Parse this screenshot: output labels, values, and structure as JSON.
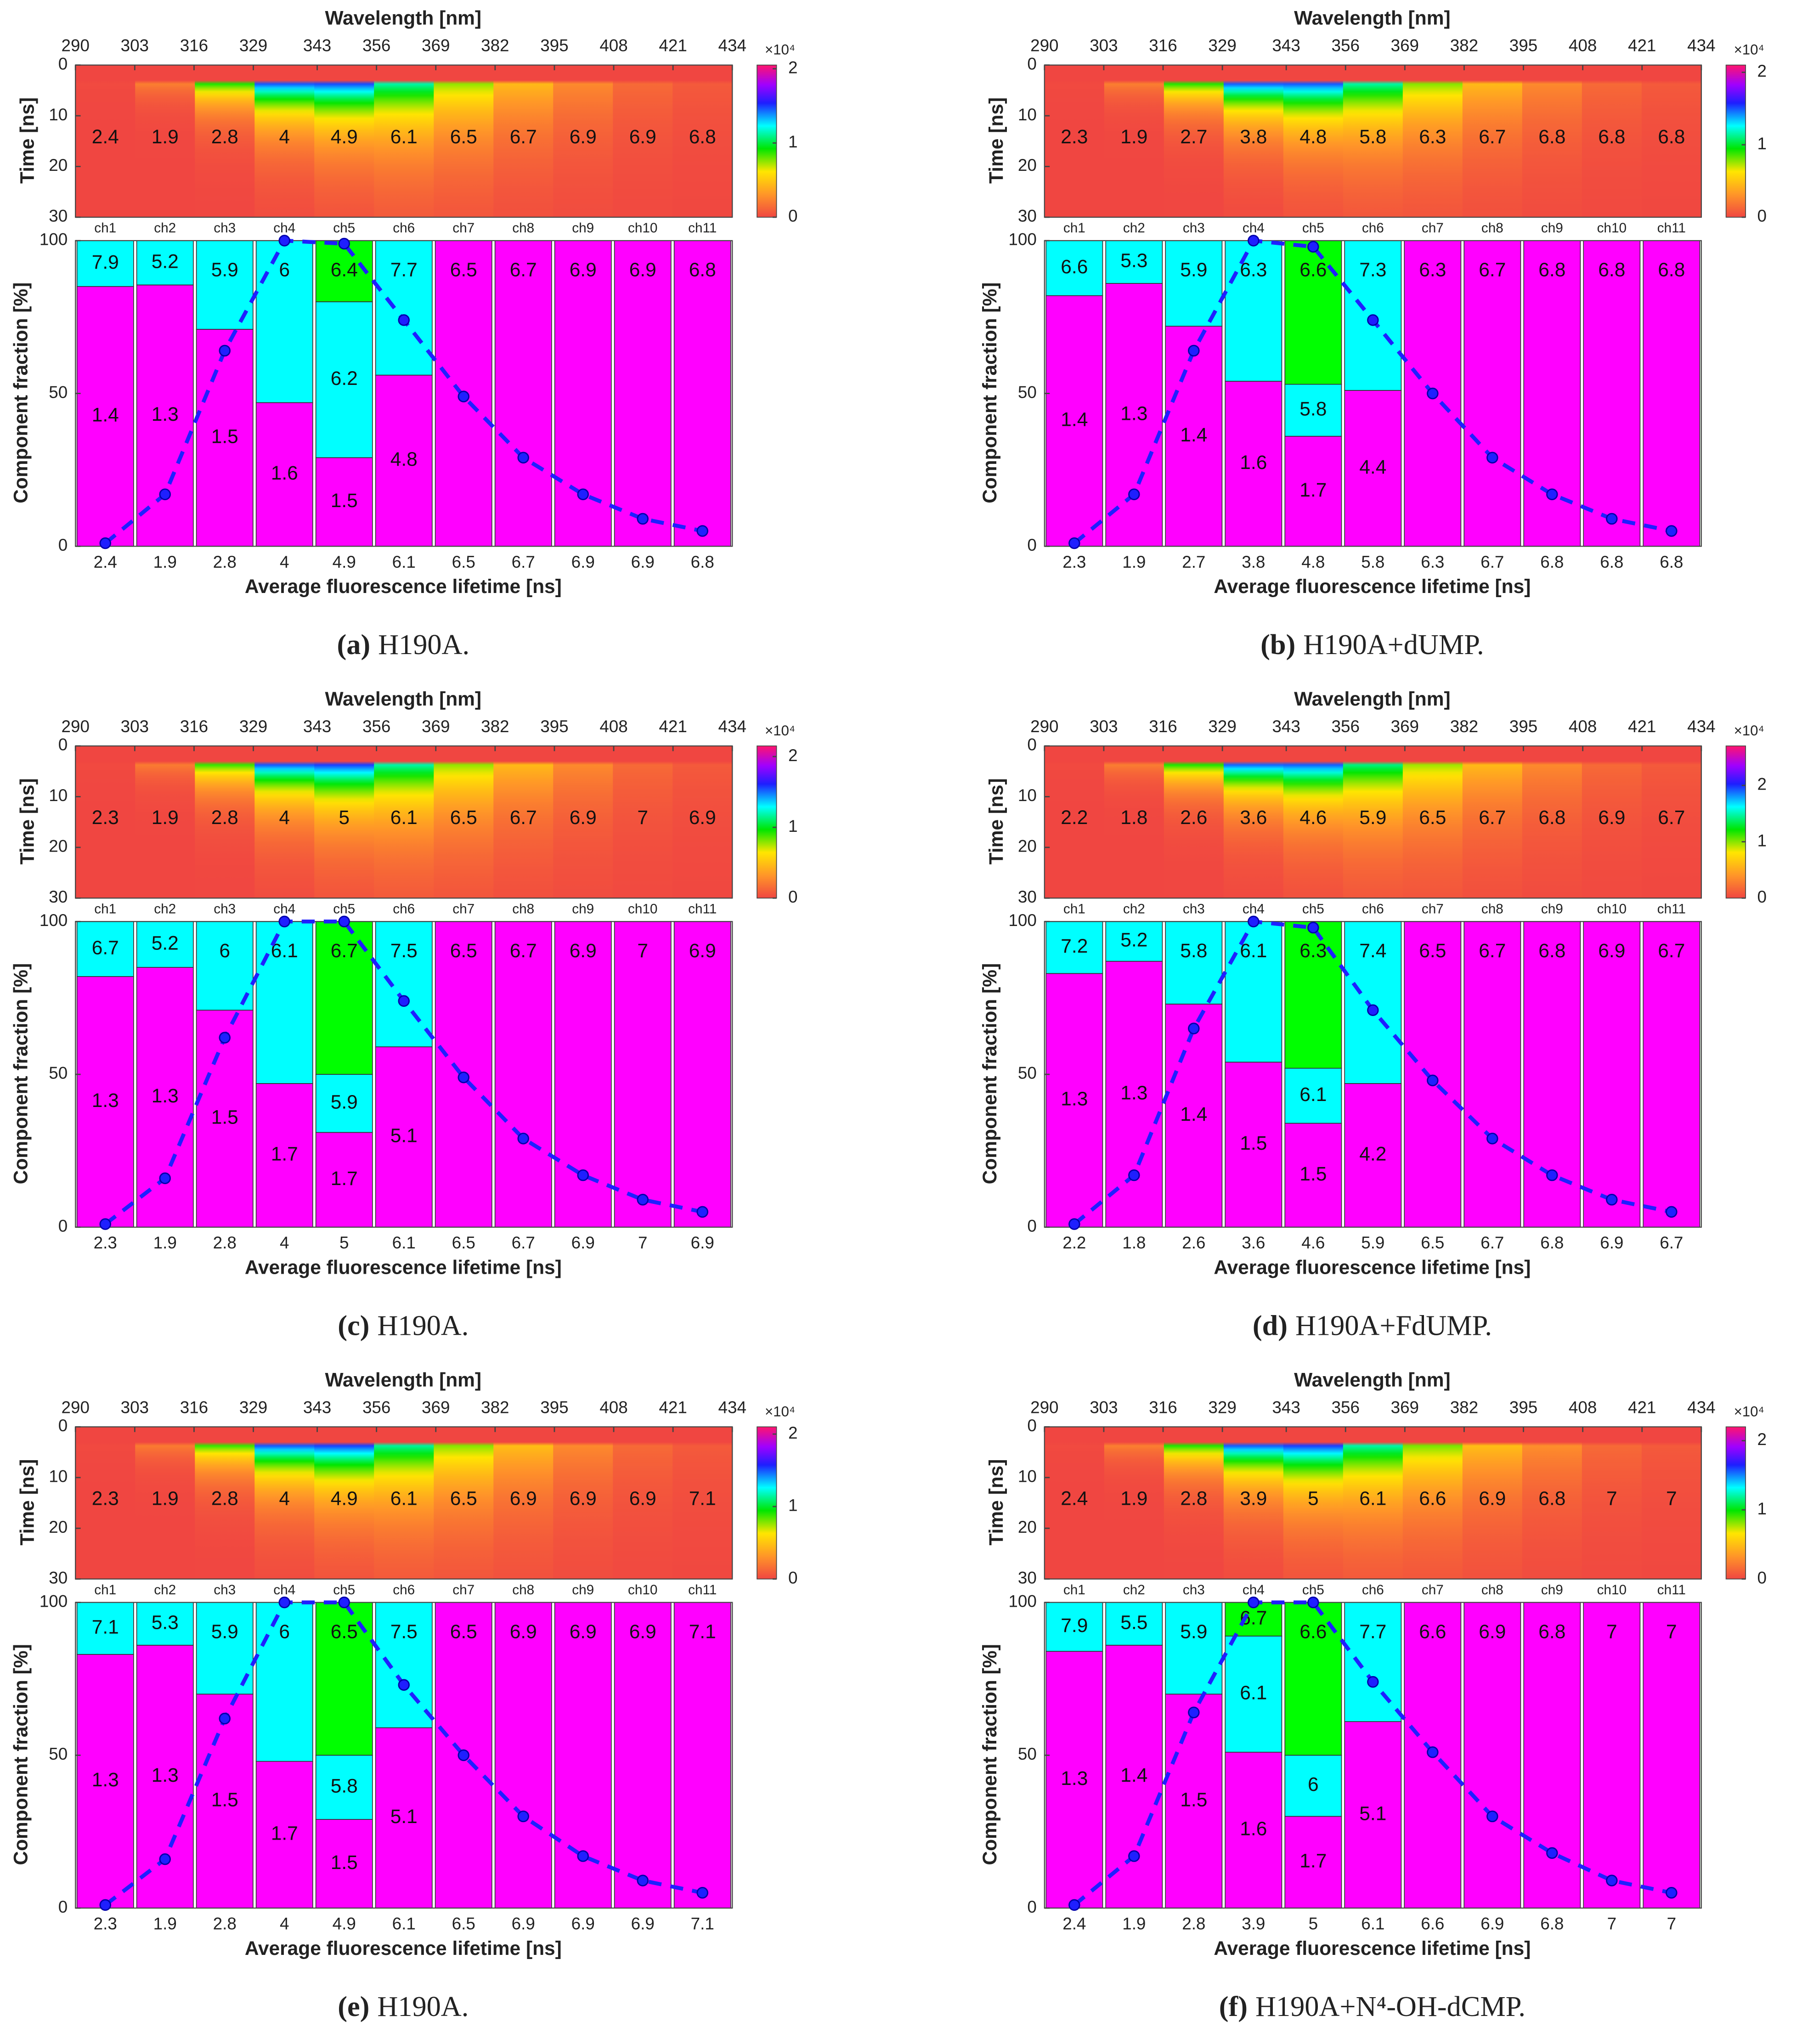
{
  "chart_data": [
    {
      "type": "bar",
      "caption_label": "(a)",
      "caption": "H190A.",
      "heatmap": {
        "xlabel": "Wavelength [nm]",
        "xlim": [
          290,
          434
        ],
        "xticks": [
          290,
          303,
          316,
          329,
          343,
          356,
          369,
          382,
          395,
          408,
          421,
          434
        ],
        "ylabel": "Time [ns]",
        "ylim": [
          0,
          30
        ],
        "yticks": [
          0,
          10,
          20,
          30
        ],
        "colorbar_lim": [
          0,
          2.05
        ],
        "colorbar_ticks": [
          0,
          1,
          2
        ],
        "colorbar_exponent": "×10⁴"
      },
      "categories": [
        "ch1",
        "ch2",
        "ch3",
        "ch4",
        "ch5",
        "ch6",
        "ch7",
        "ch8",
        "ch9",
        "ch10",
        "ch11"
      ],
      "average_lifetimes": [
        2.4,
        1.9,
        2.8,
        4,
        4.9,
        6.1,
        6.5,
        6.7,
        6.9,
        6.9,
        6.8
      ],
      "series": [
        {
          "color": "#ff00ff",
          "values": [
            85,
            85.5,
            71,
            47,
            29,
            56,
            100,
            100,
            100,
            100,
            100
          ],
          "lifetimes": [
            1.4,
            1.3,
            1.5,
            1.6,
            1.5,
            4.8,
            6.5,
            6.7,
            6.9,
            6.9,
            6.8
          ]
        },
        {
          "color": "#00ffff",
          "values": [
            15,
            14.5,
            29,
            53,
            51,
            44,
            0,
            0,
            0,
            0,
            0
          ],
          "lifetimes": [
            7.9,
            5.2,
            5.9,
            6,
            6.2,
            7.7,
            null,
            null,
            null,
            null,
            null
          ]
        },
        {
          "color": "#00ff00",
          "values": [
            0,
            0,
            0,
            0,
            20,
            0,
            0,
            0,
            0,
            0,
            0
          ],
          "lifetimes": [
            null,
            null,
            null,
            null,
            6.4,
            null,
            null,
            null,
            null,
            null,
            null
          ]
        }
      ],
      "line": {
        "color": "#1f1fff",
        "values": [
          1,
          17,
          64,
          100,
          99,
          74,
          49,
          29,
          17,
          9,
          5
        ]
      },
      "ylabel": "Component fraction [%]",
      "xlabel": "Average fluorescence lifetime [ns]",
      "ylim": [
        0,
        100
      ],
      "yticks": [
        0,
        50,
        100
      ]
    },
    {
      "type": "bar",
      "caption_label": "(b)",
      "caption": "H190A+dUMP.",
      "heatmap": {
        "xlabel": "Wavelength [nm]",
        "xlim": [
          290,
          434
        ],
        "xticks": [
          290,
          303,
          316,
          329,
          343,
          356,
          369,
          382,
          395,
          408,
          421,
          434
        ],
        "ylabel": "Time [ns]",
        "ylim": [
          0,
          30
        ],
        "yticks": [
          0,
          10,
          20,
          30
        ],
        "colorbar_lim": [
          0,
          2.1
        ],
        "colorbar_ticks": [
          0,
          1,
          2
        ],
        "colorbar_exponent": "×10⁴"
      },
      "categories": [
        "ch1",
        "ch2",
        "ch3",
        "ch4",
        "ch5",
        "ch6",
        "ch7",
        "ch8",
        "ch9",
        "ch10",
        "ch11"
      ],
      "average_lifetimes": [
        2.3,
        1.9,
        2.7,
        3.8,
        4.8,
        5.8,
        6.3,
        6.7,
        6.8,
        6.8,
        6.8
      ],
      "series": [
        {
          "color": "#ff00ff",
          "values": [
            82,
            86,
            72,
            54,
            36,
            51,
            100,
            100,
            100,
            100,
            100
          ],
          "lifetimes": [
            1.4,
            1.3,
            1.4,
            1.6,
            1.7,
            4.4,
            6.3,
            6.7,
            6.8,
            6.8,
            6.8
          ]
        },
        {
          "color": "#00ffff",
          "values": [
            18,
            14,
            28,
            46,
            17,
            49,
            0,
            0,
            0,
            0,
            0
          ],
          "lifetimes": [
            6.6,
            5.3,
            5.9,
            6.3,
            5.8,
            7.3,
            null,
            null,
            null,
            null,
            null
          ]
        },
        {
          "color": "#00ff00",
          "values": [
            0,
            0,
            0,
            0,
            47,
            0,
            0,
            0,
            0,
            0,
            0
          ],
          "lifetimes": [
            null,
            null,
            null,
            null,
            6.6,
            null,
            null,
            null,
            null,
            null,
            null
          ]
        }
      ],
      "line": {
        "color": "#1f1fff",
        "values": [
          1,
          17,
          64,
          100,
          98,
          74,
          50,
          29,
          17,
          9,
          5
        ]
      },
      "ylabel": "Component fraction [%]",
      "xlabel": "Average fluorescence lifetime [ns]",
      "ylim": [
        0,
        100
      ],
      "yticks": [
        0,
        50,
        100
      ]
    },
    {
      "type": "bar",
      "caption_label": "(c)",
      "caption": "H190A.",
      "heatmap": {
        "xlabel": "Wavelength [nm]",
        "xlim": [
          290,
          434
        ],
        "xticks": [
          290,
          303,
          316,
          329,
          343,
          356,
          369,
          382,
          395,
          408,
          421,
          434
        ],
        "ylabel": "Time [ns]",
        "ylim": [
          0,
          30
        ],
        "yticks": [
          0,
          10,
          20,
          30
        ],
        "colorbar_lim": [
          0,
          2.15
        ],
        "colorbar_ticks": [
          0,
          1,
          2
        ],
        "colorbar_exponent": "×10⁴"
      },
      "categories": [
        "ch1",
        "ch2",
        "ch3",
        "ch4",
        "ch5",
        "ch6",
        "ch7",
        "ch8",
        "ch9",
        "ch10",
        "ch11"
      ],
      "average_lifetimes": [
        2.3,
        1.9,
        2.8,
        4,
        5,
        6.1,
        6.5,
        6.7,
        6.9,
        7,
        6.9
      ],
      "series": [
        {
          "color": "#ff00ff",
          "values": [
            82,
            85,
            71,
            47,
            31,
            59,
            100,
            100,
            100,
            100,
            100
          ],
          "lifetimes": [
            1.3,
            1.3,
            1.5,
            1.7,
            1.7,
            5.1,
            6.5,
            6.7,
            6.9,
            7,
            6.9
          ]
        },
        {
          "color": "#00ffff",
          "values": [
            18,
            15,
            29,
            53,
            19,
            41,
            0,
            0,
            0,
            0,
            0
          ],
          "lifetimes": [
            6.7,
            5.2,
            6,
            6.1,
            5.9,
            7.5,
            null,
            null,
            null,
            null,
            null
          ]
        },
        {
          "color": "#00ff00",
          "values": [
            0,
            0,
            0,
            0,
            50,
            0,
            0,
            0,
            0,
            0,
            0
          ],
          "lifetimes": [
            null,
            null,
            null,
            null,
            6.7,
            null,
            null,
            null,
            null,
            null,
            null
          ]
        }
      ],
      "line": {
        "color": "#1f1fff",
        "values": [
          1,
          16,
          62,
          100,
          100,
          74,
          49,
          29,
          17,
          9,
          5
        ]
      },
      "ylabel": "Component fraction [%]",
      "xlabel": "Average fluorescence lifetime [ns]",
      "ylim": [
        0,
        100
      ],
      "yticks": [
        0,
        50,
        100
      ]
    },
    {
      "type": "bar",
      "caption_label": "(d)",
      "caption": "H190A+FdUMP.",
      "heatmap": {
        "xlabel": "Wavelength [nm]",
        "xlim": [
          290,
          434
        ],
        "xticks": [
          290,
          303,
          316,
          329,
          343,
          356,
          369,
          382,
          395,
          408,
          421,
          434
        ],
        "ylabel": "Time [ns]",
        "ylim": [
          0,
          30
        ],
        "yticks": [
          0,
          10,
          20,
          30
        ],
        "colorbar_lim": [
          0,
          2.7
        ],
        "colorbar_ticks": [
          0,
          1,
          2
        ],
        "colorbar_exponent": "×10⁴"
      },
      "categories": [
        "ch1",
        "ch2",
        "ch3",
        "ch4",
        "ch5",
        "ch6",
        "ch7",
        "ch8",
        "ch9",
        "ch10",
        "ch11"
      ],
      "average_lifetimes": [
        2.2,
        1.8,
        2.6,
        3.6,
        4.6,
        5.9,
        6.5,
        6.7,
        6.8,
        6.9,
        6.7
      ],
      "series": [
        {
          "color": "#ff00ff",
          "values": [
            83,
            87,
            73,
            54,
            34,
            47,
            100,
            100,
            100,
            100,
            100
          ],
          "lifetimes": [
            1.3,
            1.3,
            1.4,
            1.5,
            1.5,
            4.2,
            6.5,
            6.7,
            6.8,
            6.9,
            6.7
          ]
        },
        {
          "color": "#00ffff",
          "values": [
            17,
            13,
            27,
            46,
            18,
            53,
            0,
            0,
            0,
            0,
            0
          ],
          "lifetimes": [
            7.2,
            5.2,
            5.8,
            6.1,
            6.1,
            7.4,
            null,
            null,
            null,
            null,
            null
          ]
        },
        {
          "color": "#00ff00",
          "values": [
            0,
            0,
            0,
            0,
            48,
            0,
            0,
            0,
            0,
            0,
            0
          ],
          "lifetimes": [
            null,
            null,
            null,
            null,
            6.3,
            null,
            null,
            null,
            null,
            null,
            null
          ]
        }
      ],
      "line": {
        "color": "#1f1fff",
        "values": [
          1,
          17,
          65,
          100,
          98,
          71,
          48,
          29,
          17,
          9,
          5
        ]
      },
      "ylabel": "Component fraction [%]",
      "xlabel": "Average fluorescence lifetime [ns]",
      "ylim": [
        0,
        100
      ],
      "yticks": [
        0,
        50,
        100
      ]
    },
    {
      "type": "bar",
      "caption_label": "(e)",
      "caption": "H190A.",
      "heatmap": {
        "xlabel": "Wavelength [nm]",
        "xlim": [
          290,
          434
        ],
        "xticks": [
          290,
          303,
          316,
          329,
          343,
          356,
          369,
          382,
          395,
          408,
          421,
          434
        ],
        "ylabel": "Time [ns]",
        "ylim": [
          0,
          30
        ],
        "yticks": [
          0,
          10,
          20,
          30
        ],
        "colorbar_lim": [
          0,
          2.1
        ],
        "colorbar_ticks": [
          0,
          1,
          2
        ],
        "colorbar_exponent": "×10⁴"
      },
      "categories": [
        "ch1",
        "ch2",
        "ch3",
        "ch4",
        "ch5",
        "ch6",
        "ch7",
        "ch8",
        "ch9",
        "ch10",
        "ch11"
      ],
      "average_lifetimes": [
        2.3,
        1.9,
        2.8,
        4,
        4.9,
        6.1,
        6.5,
        6.9,
        6.9,
        6.9,
        7.1
      ],
      "series": [
        {
          "color": "#ff00ff",
          "values": [
            83,
            86,
            70,
            48,
            29,
            59,
            100,
            100,
            100,
            100,
            100
          ],
          "lifetimes": [
            1.3,
            1.3,
            1.5,
            1.7,
            1.5,
            5.1,
            6.5,
            6.9,
            6.9,
            6.9,
            7.1
          ]
        },
        {
          "color": "#00ffff",
          "values": [
            17,
            14,
            30,
            52,
            21,
            41,
            0,
            0,
            0,
            0,
            0
          ],
          "lifetimes": [
            7.1,
            5.3,
            5.9,
            6,
            5.8,
            7.5,
            null,
            null,
            null,
            null,
            null
          ]
        },
        {
          "color": "#00ff00",
          "values": [
            0,
            0,
            0,
            0,
            50,
            0,
            0,
            0,
            0,
            0,
            0
          ],
          "lifetimes": [
            null,
            null,
            null,
            null,
            6.5,
            null,
            null,
            null,
            null,
            null,
            null
          ]
        }
      ],
      "line": {
        "color": "#1f1fff",
        "values": [
          1,
          16,
          62,
          100,
          100,
          73,
          50,
          30,
          17,
          9,
          5
        ]
      },
      "ylabel": "Component fraction [%]",
      "xlabel": "Average fluorescence lifetime [ns]",
      "ylim": [
        0,
        100
      ],
      "yticks": [
        0,
        50,
        100
      ]
    },
    {
      "type": "bar",
      "caption_label": "(f)",
      "caption": "H190A+N⁴-OH-dCMP.",
      "heatmap": {
        "xlabel": "Wavelength [nm]",
        "xlim": [
          290,
          434
        ],
        "xticks": [
          290,
          303,
          316,
          329,
          343,
          356,
          369,
          382,
          395,
          408,
          421,
          434
        ],
        "ylabel": "Time [ns]",
        "ylim": [
          0,
          30
        ],
        "yticks": [
          0,
          10,
          20,
          30
        ],
        "colorbar_lim": [
          0,
          2.2
        ],
        "colorbar_ticks": [
          0,
          1,
          2
        ],
        "colorbar_exponent": "×10⁴"
      },
      "categories": [
        "ch1",
        "ch2",
        "ch3",
        "ch4",
        "ch5",
        "ch6",
        "ch7",
        "ch8",
        "ch9",
        "ch10",
        "ch11"
      ],
      "average_lifetimes": [
        2.4,
        1.9,
        2.8,
        3.9,
        5,
        6.1,
        6.6,
        6.9,
        6.8,
        7,
        7
      ],
      "series": [
        {
          "color": "#ff00ff",
          "values": [
            84,
            86,
            70,
            51,
            30,
            61,
            100,
            100,
            100,
            100,
            100
          ],
          "lifetimes": [
            1.3,
            1.4,
            1.5,
            1.6,
            1.7,
            5.1,
            6.6,
            6.9,
            6.8,
            7,
            7
          ]
        },
        {
          "color": "#00ffff",
          "values": [
            16,
            14,
            30,
            38,
            20,
            39,
            0,
            0,
            0,
            0,
            0
          ],
          "lifetimes": [
            7.9,
            5.5,
            5.9,
            6.1,
            6,
            7.7,
            null,
            null,
            null,
            null,
            null
          ]
        },
        {
          "color": "#00ff00",
          "values": [
            0,
            0,
            0,
            11,
            50,
            0,
            0,
            0,
            0,
            0,
            0
          ],
          "lifetimes": [
            null,
            null,
            null,
            6.7,
            6.6,
            null,
            null,
            null,
            null,
            null,
            null
          ]
        }
      ],
      "line": {
        "color": "#1f1fff",
        "values": [
          1,
          17,
          64,
          100,
          100,
          74,
          51,
          30,
          18,
          9,
          5
        ]
      },
      "ylabel": "Component fraction [%]",
      "xlabel": "Average fluorescence lifetime [ns]",
      "ylim": [
        0,
        100
      ],
      "yticks": [
        0,
        50,
        100
      ]
    }
  ]
}
